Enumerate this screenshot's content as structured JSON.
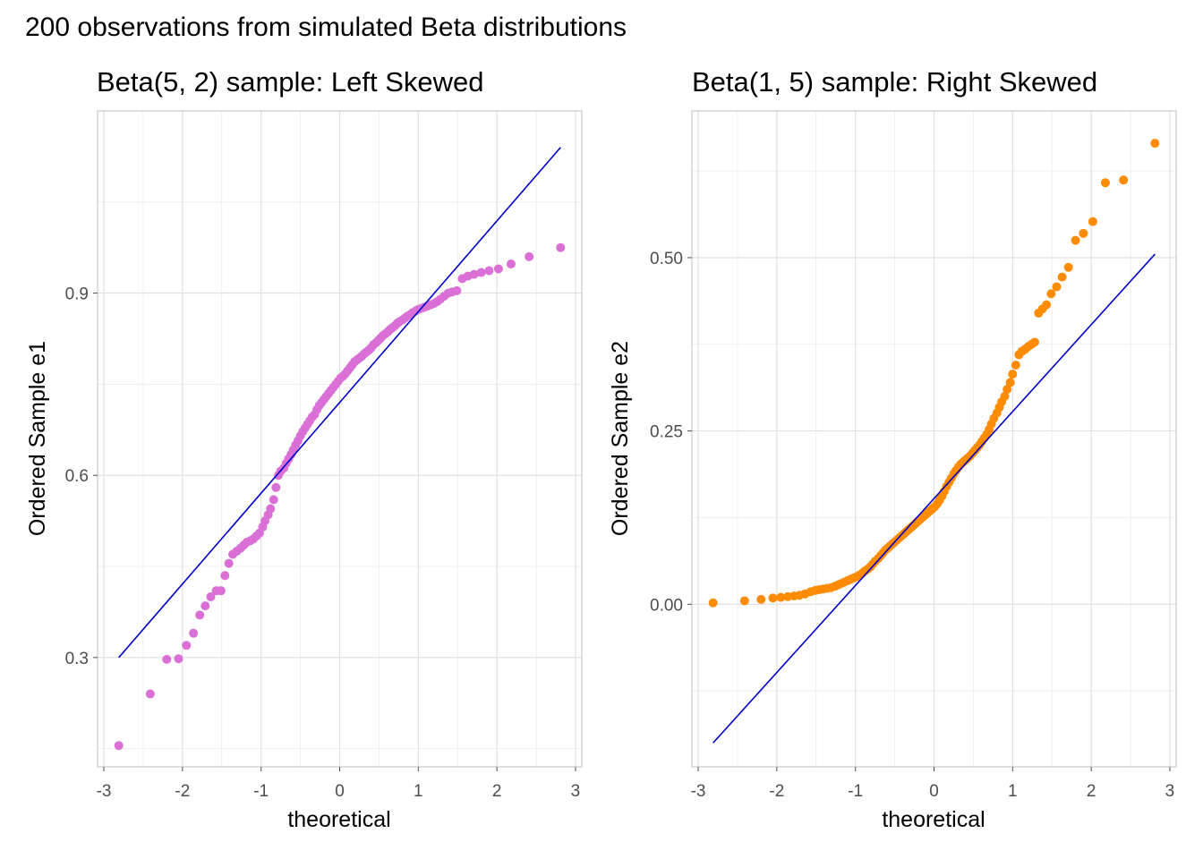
{
  "figure": {
    "title": "200 observations from simulated Beta distributions"
  },
  "chart_data": [
    {
      "type": "scatter",
      "title": "Beta(5, 2) sample: Left Skewed",
      "xlabel": "theoretical",
      "ylabel": "Ordered Sample e1",
      "xlim": [
        -3.08,
        3.08
      ],
      "ylim": [
        0.12,
        1.2
      ],
      "xticks": [
        -3,
        -2,
        -1,
        0,
        1,
        2,
        3
      ],
      "yticks": [
        0.3,
        0.6,
        0.9
      ],
      "ytick_labels": [
        "0.3",
        "0.6",
        "0.9"
      ],
      "grid": true,
      "point_color": "#da70d6",
      "line_color": "#0000cd",
      "reference_line": {
        "x": [
          -2.81,
          2.81
        ],
        "y": [
          0.3,
          1.14
        ]
      },
      "series": [
        {
          "points": [
            [
              -2.81,
              0.155
            ],
            [
              -2.41,
              0.24
            ],
            [
              -2.2,
              0.297
            ],
            [
              -2.05,
              0.298
            ],
            [
              -1.95,
              0.32
            ],
            [
              -1.86,
              0.34
            ],
            [
              -1.78,
              0.37
            ],
            [
              -1.71,
              0.385
            ],
            [
              -1.64,
              0.4
            ],
            [
              -1.57,
              0.41
            ],
            [
              -1.51,
              0.41
            ],
            [
              -1.46,
              0.435
            ],
            [
              -1.41,
              0.455
            ],
            [
              -1.36,
              0.47
            ],
            [
              -1.31,
              0.475
            ],
            [
              -1.26,
              0.48
            ],
            [
              -1.22,
              0.485
            ],
            [
              -1.18,
              0.49
            ],
            [
              -1.14,
              0.492
            ],
            [
              -1.1,
              0.495
            ],
            [
              -1.06,
              0.5
            ],
            [
              -1.02,
              0.505
            ],
            [
              -0.98,
              0.515
            ],
            [
              -0.95,
              0.525
            ],
            [
              -0.91,
              0.535
            ],
            [
              -0.88,
              0.545
            ],
            [
              -0.84,
              0.56
            ],
            [
              -0.81,
              0.58
            ],
            [
              -0.78,
              0.6
            ],
            [
              -0.75,
              0.607
            ],
            [
              -0.71,
              0.612
            ],
            [
              -0.68,
              0.62
            ],
            [
              -0.65,
              0.627
            ],
            [
              -0.62,
              0.634
            ],
            [
              -0.59,
              0.642
            ],
            [
              -0.56,
              0.65
            ],
            [
              -0.53,
              0.657
            ],
            [
              -0.5,
              0.665
            ],
            [
              -0.47,
              0.672
            ],
            [
              -0.44,
              0.678
            ],
            [
              -0.41,
              0.684
            ],
            [
              -0.38,
              0.69
            ],
            [
              -0.35,
              0.696
            ],
            [
              -0.32,
              0.7
            ],
            [
              -0.29,
              0.708
            ],
            [
              -0.26,
              0.715
            ],
            [
              -0.23,
              0.72
            ],
            [
              -0.2,
              0.725
            ],
            [
              -0.17,
              0.73
            ],
            [
              -0.14,
              0.735
            ],
            [
              -0.11,
              0.74
            ],
            [
              -0.08,
              0.745
            ],
            [
              -0.05,
              0.75
            ],
            [
              -0.02,
              0.755
            ],
            [
              0.01,
              0.76
            ],
            [
              0.04,
              0.763
            ],
            [
              0.07,
              0.767
            ],
            [
              0.1,
              0.772
            ],
            [
              0.13,
              0.777
            ],
            [
              0.16,
              0.782
            ],
            [
              0.19,
              0.787
            ],
            [
              0.22,
              0.79
            ],
            [
              0.25,
              0.793
            ],
            [
              0.28,
              0.796
            ],
            [
              0.31,
              0.8
            ],
            [
              0.34,
              0.803
            ],
            [
              0.37,
              0.806
            ],
            [
              0.4,
              0.81
            ],
            [
              0.43,
              0.815
            ],
            [
              0.46,
              0.818
            ],
            [
              0.49,
              0.822
            ],
            [
              0.52,
              0.826
            ],
            [
              0.55,
              0.83
            ],
            [
              0.58,
              0.833
            ],
            [
              0.61,
              0.836
            ],
            [
              0.64,
              0.84
            ],
            [
              0.67,
              0.843
            ],
            [
              0.7,
              0.846
            ],
            [
              0.73,
              0.85
            ],
            [
              0.76,
              0.853
            ],
            [
              0.8,
              0.856
            ],
            [
              0.83,
              0.859
            ],
            [
              0.86,
              0.862
            ],
            [
              0.9,
              0.865
            ],
            [
              0.93,
              0.868
            ],
            [
              0.97,
              0.871
            ],
            [
              1.0,
              0.873
            ],
            [
              1.04,
              0.875
            ],
            [
              1.08,
              0.877
            ],
            [
              1.12,
              0.879
            ],
            [
              1.16,
              0.881
            ],
            [
              1.2,
              0.883
            ],
            [
              1.24,
              0.886
            ],
            [
              1.28,
              0.89
            ],
            [
              1.33,
              0.895
            ],
            [
              1.38,
              0.9
            ],
            [
              1.43,
              0.902
            ],
            [
              1.49,
              0.904
            ],
            [
              1.56,
              0.924
            ],
            [
              1.63,
              0.928
            ],
            [
              1.71,
              0.931
            ],
            [
              1.8,
              0.934
            ],
            [
              1.9,
              0.937
            ],
            [
              2.02,
              0.94
            ],
            [
              2.18,
              0.948
            ],
            [
              2.41,
              0.96
            ],
            [
              2.81,
              0.975
            ]
          ]
        }
      ]
    },
    {
      "type": "scatter",
      "title": "Beta(1, 5) sample: Right Skewed",
      "xlabel": "theoretical",
      "ylabel": "Ordered Sample e2",
      "xlim": [
        -3.08,
        3.08
      ],
      "ylim": [
        -0.2345,
        0.7116
      ],
      "xticks": [
        -3,
        -2,
        -1,
        0,
        1,
        2,
        3
      ],
      "yticks": [
        0.0,
        0.25,
        0.5
      ],
      "ytick_labels": [
        "0.00",
        "0.25",
        "0.50"
      ],
      "grid": true,
      "point_color": "#ff8c00",
      "line_color": "#0000cd",
      "reference_line": {
        "x": [
          -2.81,
          2.81
        ],
        "y": [
          -0.2,
          0.505
        ]
      },
      "series": [
        {
          "points": [
            [
              -2.81,
              0.002
            ],
            [
              -2.41,
              0.005
            ],
            [
              -2.2,
              0.007
            ],
            [
              -2.05,
              0.009
            ],
            [
              -1.95,
              0.01
            ],
            [
              -1.86,
              0.011
            ],
            [
              -1.78,
              0.012
            ],
            [
              -1.71,
              0.013
            ],
            [
              -1.64,
              0.015
            ],
            [
              -1.57,
              0.018
            ],
            [
              -1.51,
              0.02
            ],
            [
              -1.46,
              0.021
            ],
            [
              -1.41,
              0.022
            ],
            [
              -1.36,
              0.023
            ],
            [
              -1.31,
              0.024
            ],
            [
              -1.26,
              0.026
            ],
            [
              -1.22,
              0.028
            ],
            [
              -1.18,
              0.03
            ],
            [
              -1.14,
              0.032
            ],
            [
              -1.1,
              0.034
            ],
            [
              -1.06,
              0.036
            ],
            [
              -1.02,
              0.038
            ],
            [
              -0.98,
              0.04
            ],
            [
              -0.95,
              0.042
            ],
            [
              -0.91,
              0.045
            ],
            [
              -0.88,
              0.048
            ],
            [
              -0.84,
              0.051
            ],
            [
              -0.81,
              0.054
            ],
            [
              -0.78,
              0.058
            ],
            [
              -0.75,
              0.062
            ],
            [
              -0.71,
              0.066
            ],
            [
              -0.68,
              0.07
            ],
            [
              -0.65,
              0.074
            ],
            [
              -0.62,
              0.078
            ],
            [
              -0.59,
              0.081
            ],
            [
              -0.56,
              0.084
            ],
            [
              -0.53,
              0.087
            ],
            [
              -0.5,
              0.09
            ],
            [
              -0.47,
              0.093
            ],
            [
              -0.44,
              0.096
            ],
            [
              -0.41,
              0.099
            ],
            [
              -0.38,
              0.102
            ],
            [
              -0.35,
              0.105
            ],
            [
              -0.32,
              0.108
            ],
            [
              -0.29,
              0.111
            ],
            [
              -0.26,
              0.114
            ],
            [
              -0.23,
              0.117
            ],
            [
              -0.2,
              0.12
            ],
            [
              -0.17,
              0.123
            ],
            [
              -0.14,
              0.126
            ],
            [
              -0.11,
              0.129
            ],
            [
              -0.08,
              0.132
            ],
            [
              -0.05,
              0.135
            ],
            [
              -0.02,
              0.138
            ],
            [
              0.01,
              0.141
            ],
            [
              0.04,
              0.145
            ],
            [
              0.07,
              0.15
            ],
            [
              0.1,
              0.156
            ],
            [
              0.13,
              0.163
            ],
            [
              0.16,
              0.17
            ],
            [
              0.19,
              0.176
            ],
            [
              0.22,
              0.182
            ],
            [
              0.25,
              0.188
            ],
            [
              0.28,
              0.193
            ],
            [
              0.31,
              0.198
            ],
            [
              0.34,
              0.202
            ],
            [
              0.37,
              0.205
            ],
            [
              0.4,
              0.208
            ],
            [
              0.43,
              0.211
            ],
            [
              0.46,
              0.214
            ],
            [
              0.49,
              0.218
            ],
            [
              0.52,
              0.222
            ],
            [
              0.55,
              0.226
            ],
            [
              0.58,
              0.23
            ],
            [
              0.61,
              0.235
            ],
            [
              0.64,
              0.24
            ],
            [
              0.67,
              0.245
            ],
            [
              0.7,
              0.252
            ],
            [
              0.73,
              0.26
            ],
            [
              0.76,
              0.268
            ],
            [
              0.8,
              0.276
            ],
            [
              0.83,
              0.284
            ],
            [
              0.86,
              0.292
            ],
            [
              0.9,
              0.3
            ],
            [
              0.93,
              0.31
            ],
            [
              0.97,
              0.32
            ],
            [
              1.0,
              0.332
            ],
            [
              1.04,
              0.345
            ],
            [
              1.08,
              0.36
            ],
            [
              1.12,
              0.365
            ],
            [
              1.16,
              0.368
            ],
            [
              1.2,
              0.372
            ],
            [
              1.24,
              0.375
            ],
            [
              1.28,
              0.378
            ],
            [
              1.33,
              0.42
            ],
            [
              1.38,
              0.426
            ],
            [
              1.43,
              0.432
            ],
            [
              1.49,
              0.448
            ],
            [
              1.56,
              0.458
            ],
            [
              1.63,
              0.472
            ],
            [
              1.71,
              0.486
            ],
            [
              1.8,
              0.525
            ],
            [
              1.9,
              0.535
            ],
            [
              2.02,
              0.552
            ],
            [
              2.18,
              0.608
            ],
            [
              2.41,
              0.612
            ],
            [
              2.81,
              0.665
            ]
          ]
        }
      ]
    }
  ]
}
